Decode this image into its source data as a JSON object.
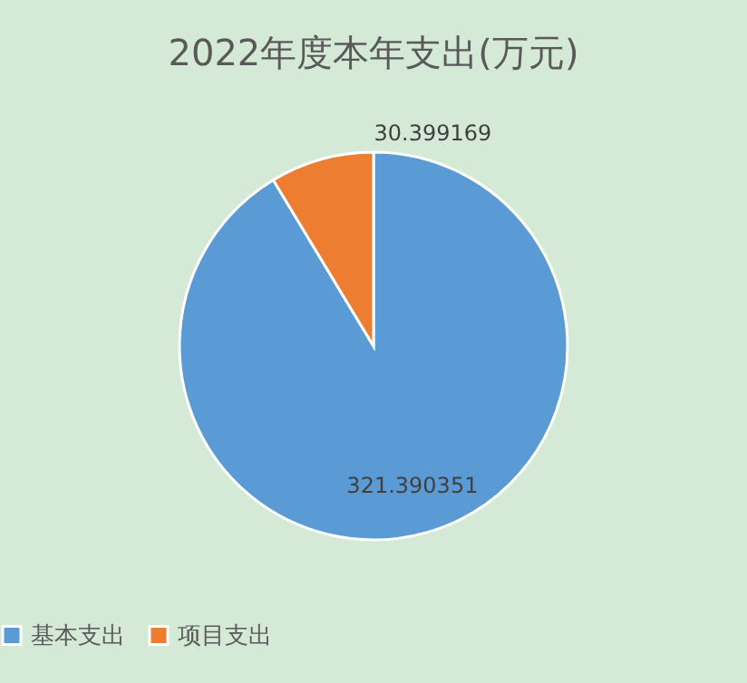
{
  "chart_data": {
    "type": "pie",
    "title": "2022年度本年支出(万元)",
    "categories": [
      "基本支出",
      "项目支出"
    ],
    "values": [
      321.390351,
      30.399169
    ],
    "colors": [
      "#5b9bd5",
      "#ed7d31"
    ],
    "data_labels": true,
    "legend": "bottom"
  }
}
